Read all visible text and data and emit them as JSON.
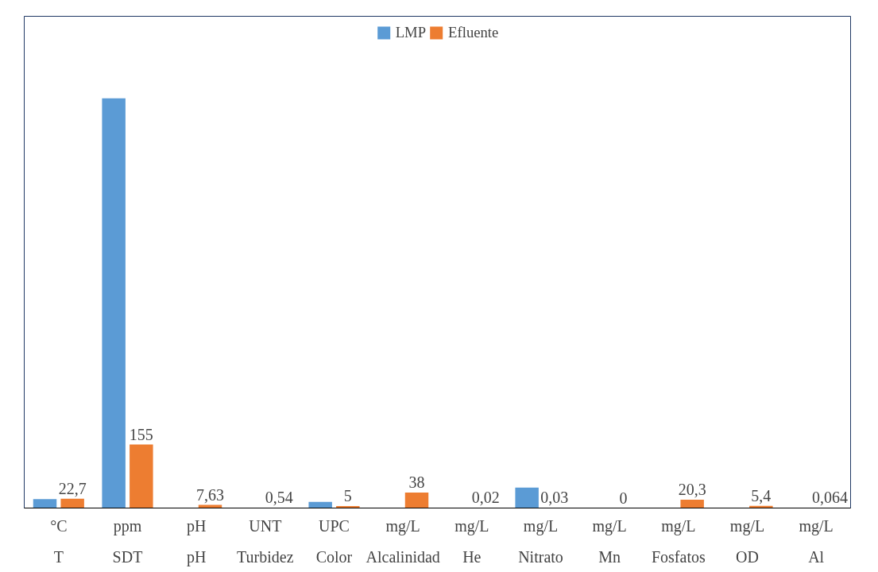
{
  "chart_data": {
    "type": "bar",
    "categories": [
      "°C\nT",
      "ppm\nSDT",
      "pH\npH",
      "UNT\nTurbidez",
      "UPC\nColor",
      "mg/L\nAlcalinidad",
      "mg/L\nHe",
      "mg/L\nNitrato",
      "mg/L\nMn",
      "mg/L\nFosfatos",
      "mg/L\nOD",
      "mg/L\nAl"
    ],
    "series": [
      {
        "name": "LMP",
        "color": "#5b9bd5",
        "values": [
          22,
          1000,
          null,
          null,
          15,
          null,
          null,
          50,
          null,
          null,
          null,
          null
        ]
      },
      {
        "name": "Efluente",
        "color": "#ed7d31",
        "values": [
          22.7,
          155,
          7.63,
          0.54,
          5,
          38,
          0.02,
          0.03,
          0,
          20.3,
          5.4,
          0.064
        ],
        "value_labels": [
          "22,7",
          "155",
          "7,63",
          "0,54",
          "5",
          "38",
          "0,02",
          "0,03",
          "0",
          "20,3",
          "5,4",
          "0,064"
        ]
      }
    ],
    "legend": "top",
    "grid": false
  }
}
